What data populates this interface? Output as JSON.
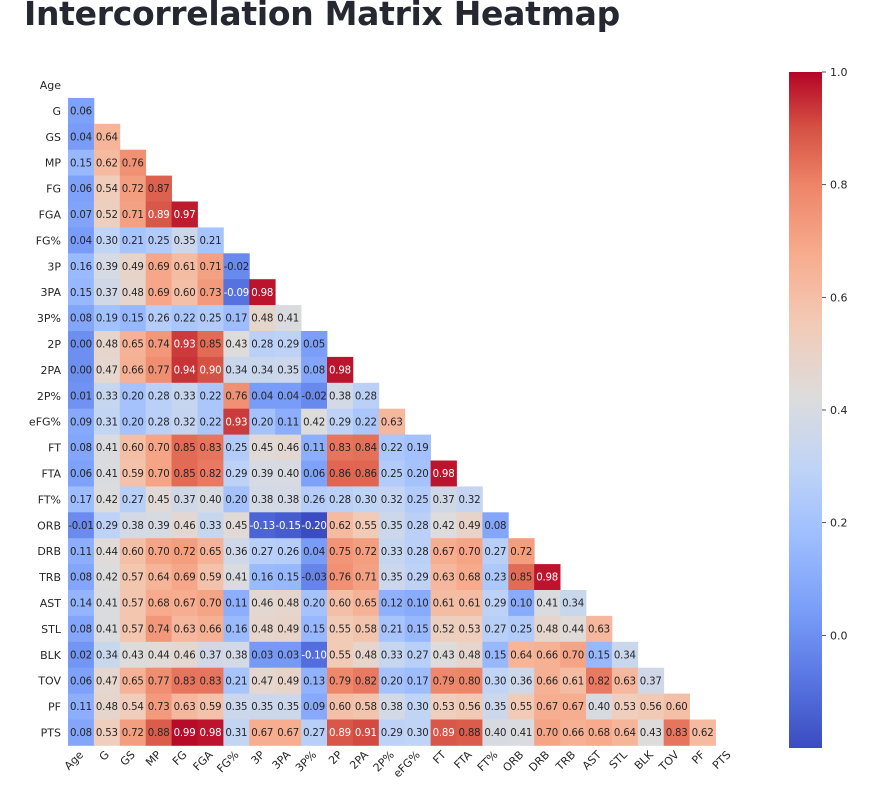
{
  "page": {
    "title": "Intercorrelation Matrix Heatmap"
  },
  "chart_data": {
    "type": "heatmap",
    "mask": "upper-triangle",
    "colormap": "coolwarm",
    "vmin": -0.2,
    "vmax": 1.0,
    "labels": [
      "Age",
      "G",
      "GS",
      "MP",
      "FG",
      "FGA",
      "FG%",
      "3P",
      "3PA",
      "3P%",
      "2P",
      "2PA",
      "2P%",
      "eFG%",
      "FT",
      "FTA",
      "FT%",
      "ORB",
      "DRB",
      "TRB",
      "AST",
      "STL",
      "BLK",
      "TOV",
      "PF",
      "PTS"
    ],
    "rows": [
      [],
      [
        "0.06"
      ],
      [
        "0.04",
        "0.64"
      ],
      [
        "0.15",
        "0.62",
        "0.76"
      ],
      [
        "0.06",
        "0.54",
        "0.72",
        "0.87"
      ],
      [
        "0.07",
        "0.52",
        "0.71",
        "0.89",
        "0.97"
      ],
      [
        "0.04",
        "0.30",
        "0.21",
        "0.25",
        "0.35",
        "0.21"
      ],
      [
        "0.16",
        "0.39",
        "0.49",
        "0.69",
        "0.61",
        "0.71",
        "-0.02"
      ],
      [
        "0.15",
        "0.37",
        "0.48",
        "0.69",
        "0.60",
        "0.73",
        "-0.09",
        "0.98"
      ],
      [
        "0.08",
        "0.19",
        "0.15",
        "0.26",
        "0.22",
        "0.25",
        "0.17",
        "0.48",
        "0.41"
      ],
      [
        "0.00",
        "0.48",
        "0.65",
        "0.74",
        "0.93",
        "0.85",
        "0.43",
        "0.28",
        "0.29",
        "0.05"
      ],
      [
        "0.00",
        "0.47",
        "0.66",
        "0.77",
        "0.94",
        "0.90",
        "0.34",
        "0.34",
        "0.35",
        "0.08",
        "0.98"
      ],
      [
        "0.01",
        "0.33",
        "0.20",
        "0.28",
        "0.33",
        "0.22",
        "0.76",
        "0.04",
        "0.04",
        "-0.02",
        "0.38",
        "0.28"
      ],
      [
        "0.09",
        "0.31",
        "0.20",
        "0.28",
        "0.32",
        "0.22",
        "0.93",
        "0.20",
        "0.11",
        "0.42",
        "0.29",
        "0.22",
        "0.63"
      ],
      [
        "0.08",
        "0.41",
        "0.60",
        "0.70",
        "0.85",
        "0.83",
        "0.25",
        "0.45",
        "0.46",
        "0.11",
        "0.83",
        "0.84",
        "0.22",
        "0.19"
      ],
      [
        "0.06",
        "0.41",
        "0.59",
        "0.70",
        "0.85",
        "0.82",
        "0.29",
        "0.39",
        "0.40",
        "0.06",
        "0.86",
        "0.86",
        "0.25",
        "0.20",
        "0.98"
      ],
      [
        "0.17",
        "0.42",
        "0.27",
        "0.45",
        "0.37",
        "0.40",
        "0.20",
        "0.38",
        "0.38",
        "0.26",
        "0.28",
        "0.30",
        "0.32",
        "0.25",
        "0.37",
        "0.32"
      ],
      [
        "-0.01",
        "0.29",
        "0.38",
        "0.39",
        "0.46",
        "0.33",
        "0.45",
        "-0.13",
        "-0.15",
        "-0.20",
        "0.62",
        "0.55",
        "0.35",
        "0.28",
        "0.42",
        "0.49",
        "0.08"
      ],
      [
        "0.11",
        "0.44",
        "0.60",
        "0.70",
        "0.72",
        "0.65",
        "0.36",
        "0.27",
        "0.26",
        "0.04",
        "0.75",
        "0.72",
        "0.33",
        "0.28",
        "0.67",
        "0.70",
        "0.27",
        "0.72"
      ],
      [
        "0.08",
        "0.42",
        "0.57",
        "0.64",
        "0.69",
        "0.59",
        "0.41",
        "0.16",
        "0.15",
        "-0.03",
        "0.76",
        "0.71",
        "0.35",
        "0.29",
        "0.63",
        "0.68",
        "0.23",
        "0.85",
        "0.98"
      ],
      [
        "0.14",
        "0.41",
        "0.57",
        "0.68",
        "0.67",
        "0.70",
        "0.11",
        "0.46",
        "0.48",
        "0.20",
        "0.60",
        "0.65",
        "0.12",
        "0.10",
        "0.61",
        "0.61",
        "0.29",
        "0.10",
        "0.41",
        "0.34"
      ],
      [
        "0.08",
        "0.41",
        "0.57",
        "0.74",
        "0.63",
        "0.66",
        "0.16",
        "0.48",
        "0.49",
        "0.15",
        "0.55",
        "0.58",
        "0.21",
        "0.15",
        "0.52",
        "0.53",
        "0.27",
        "0.25",
        "0.48",
        "0.44",
        "0.63"
      ],
      [
        "0.02",
        "0.34",
        "0.43",
        "0.44",
        "0.46",
        "0.37",
        "0.38",
        "0.03",
        "0.03",
        "-0.10",
        "0.55",
        "0.48",
        "0.33",
        "0.27",
        "0.43",
        "0.48",
        "0.15",
        "0.64",
        "0.66",
        "0.70",
        "0.15",
        "0.34"
      ],
      [
        "0.06",
        "0.47",
        "0.65",
        "0.77",
        "0.83",
        "0.83",
        "0.21",
        "0.47",
        "0.49",
        "0.13",
        "0.79",
        "0.82",
        "0.20",
        "0.17",
        "0.79",
        "0.80",
        "0.30",
        "0.36",
        "0.66",
        "0.61",
        "0.82",
        "0.63",
        "0.37"
      ],
      [
        "0.11",
        "0.48",
        "0.54",
        "0.73",
        "0.63",
        "0.59",
        "0.35",
        "0.35",
        "0.35",
        "0.09",
        "0.60",
        "0.58",
        "0.38",
        "0.30",
        "0.53",
        "0.56",
        "0.35",
        "0.55",
        "0.67",
        "0.67",
        "0.40",
        "0.53",
        "0.56",
        "0.60"
      ],
      [
        "0.08",
        "0.53",
        "0.72",
        "0.88",
        "0.99",
        "0.98",
        "0.31",
        "0.67",
        "0.67",
        "0.27",
        "0.89",
        "0.91",
        "0.29",
        "0.30",
        "0.89",
        "0.88",
        "0.40",
        "0.41",
        "0.70",
        "0.66",
        "0.68",
        "0.64",
        "0.43",
        "0.83",
        "0.62"
      ]
    ],
    "colorbar": {
      "ticks": [
        "1.0",
        "0.8",
        "0.6",
        "0.4",
        "0.2",
        "0.0"
      ]
    }
  }
}
